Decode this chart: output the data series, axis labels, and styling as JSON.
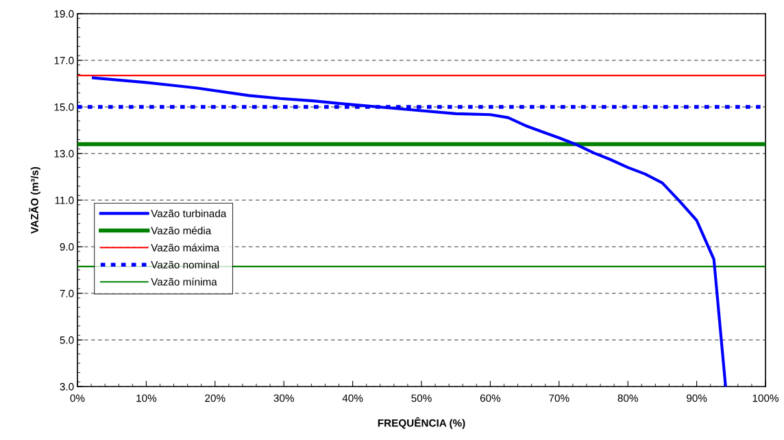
{
  "chart_data": {
    "type": "line",
    "xlabel": "FREQUÊNCIA (%)",
    "ylabel": "VAZÃO (m³/s)",
    "xlim": [
      0,
      100
    ],
    "ylim": [
      3,
      19
    ],
    "xticks": [
      {
        "value": 0,
        "label": "0%"
      },
      {
        "value": 10,
        "label": "10%"
      },
      {
        "value": 20,
        "label": "20%"
      },
      {
        "value": 30,
        "label": "30%"
      },
      {
        "value": 40,
        "label": "40%"
      },
      {
        "value": 50,
        "label": "50%"
      },
      {
        "value": 60,
        "label": "60%"
      },
      {
        "value": 70,
        "label": "70%"
      },
      {
        "value": 80,
        "label": "80%"
      },
      {
        "value": 90,
        "label": "90%"
      },
      {
        "value": 100,
        "label": "100%"
      }
    ],
    "yticks": [
      {
        "value": 3,
        "label": "3.0"
      },
      {
        "value": 5,
        "label": "5.0"
      },
      {
        "value": 7,
        "label": "7.0"
      },
      {
        "value": 9,
        "label": "9.0"
      },
      {
        "value": 11,
        "label": "11.0"
      },
      {
        "value": 13,
        "label": "13.0"
      },
      {
        "value": 15,
        "label": "15.0"
      },
      {
        "value": 17,
        "label": "17.0"
      },
      {
        "value": 19,
        "label": "19.0"
      }
    ],
    "grid": "y",
    "legend": "left",
    "marker": "none",
    "line_style": "solid",
    "series": [
      {
        "name": "Vazão turbinada",
        "color": "#0000ff",
        "x": [
          2.3,
          10,
          17.4,
          24.9,
          29.5,
          34.2,
          40.2,
          48.0,
          55.0,
          60.0,
          62.6,
          65.1,
          67.4,
          70.1,
          72.7,
          75.1,
          77.4,
          80.0,
          82.5,
          85.0,
          87.5,
          90.0,
          92.5,
          94.2
        ],
        "values": [
          16.25,
          16.05,
          15.81,
          15.49,
          15.36,
          15.26,
          15.09,
          14.89,
          14.71,
          14.67,
          14.54,
          14.2,
          13.95,
          13.66,
          13.36,
          13.02,
          12.75,
          12.4,
          12.12,
          11.74,
          10.96,
          10.13,
          8.46,
          3.0
        ]
      }
    ],
    "ref_lines": [
      {
        "axis": "y",
        "value": 13.4,
        "label": "Vazão média",
        "color": "#008000",
        "line_style": "solid"
      },
      {
        "axis": "y",
        "value": 16.35,
        "label": "Vazão máxima",
        "color": "#ff0000",
        "line_style": "solid"
      },
      {
        "axis": "y",
        "value": 15.0,
        "label": "Vazão nominal",
        "color": "#0000ff",
        "line_style": "dotted"
      },
      {
        "axis": "y",
        "value": 8.15,
        "label": "Vazão mínima",
        "color": "#008000",
        "line_style": "solid"
      }
    ]
  }
}
